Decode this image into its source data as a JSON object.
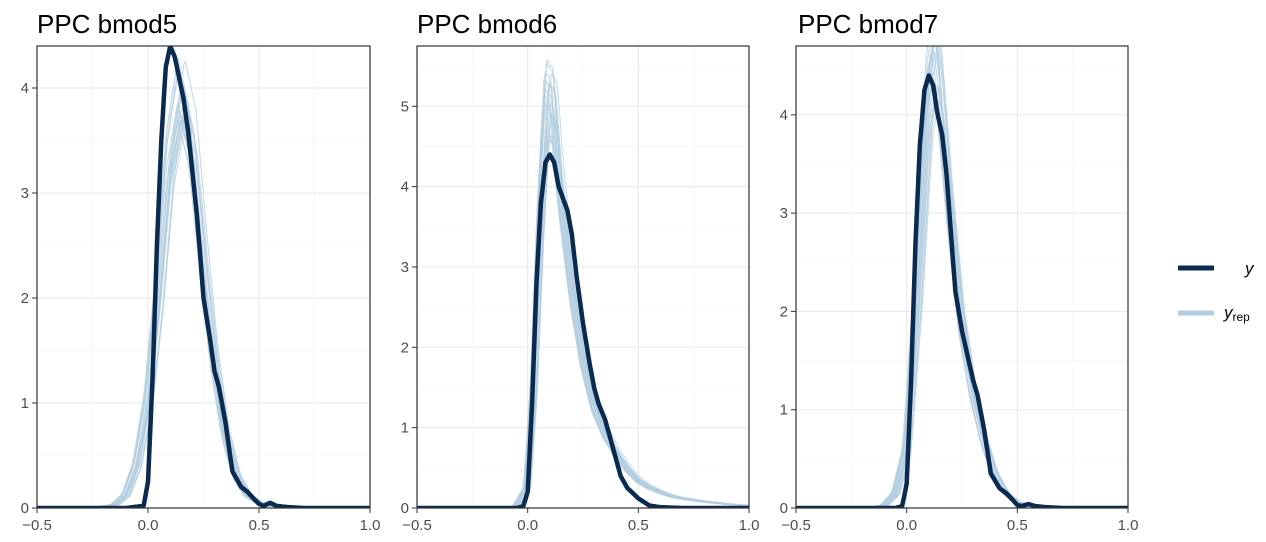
{
  "palette": {
    "y": "#0b2a4f",
    "yrep": "#b3cde0",
    "grid_major": "#ebebeb",
    "grid_minor": "#f5f5f5",
    "frame": "#333333",
    "tick_text": "#4d4d4d"
  },
  "legend": {
    "y_label": "y",
    "yrep_label": "y",
    "yrep_sub": "rep"
  },
  "chart_data": [
    {
      "type": "area",
      "title": "PPC bmod5",
      "xlabel": "",
      "ylabel": "",
      "xlim": [
        -0.5,
        1.0
      ],
      "ylim": [
        0,
        4.4
      ],
      "xticks": [
        -0.5,
        0.0,
        0.5,
        1.0
      ],
      "xtick_labels": [
        "−0.5",
        "0.0",
        "0.5",
        "1.0"
      ],
      "yticks": [
        0,
        1,
        2,
        3,
        4
      ],
      "grid": true,
      "series": [
        {
          "name": "y",
          "x": [
            -0.5,
            -0.1,
            -0.02,
            0.0,
            0.02,
            0.04,
            0.06,
            0.08,
            0.1,
            0.12,
            0.14,
            0.16,
            0.18,
            0.2,
            0.22,
            0.25,
            0.28,
            0.3,
            0.32,
            0.35,
            0.38,
            0.42,
            0.45,
            0.48,
            0.5,
            0.52,
            0.55,
            0.58,
            0.62,
            0.7,
            1.0
          ],
          "y": [
            0,
            0,
            0.02,
            0.25,
            1.2,
            2.5,
            3.5,
            4.2,
            4.4,
            4.3,
            4.1,
            3.9,
            3.6,
            3.2,
            2.8,
            2.0,
            1.6,
            1.3,
            1.15,
            0.8,
            0.35,
            0.2,
            0.15,
            0.08,
            0.04,
            0.02,
            0.05,
            0.02,
            0.01,
            0,
            0
          ]
        }
      ],
      "yrep_draws": 20,
      "yrep_base": {
        "x": [
          -0.5,
          -0.25,
          -0.15,
          -0.1,
          -0.05,
          0.0,
          0.05,
          0.1,
          0.15,
          0.2,
          0.25,
          0.3,
          0.35,
          0.4,
          0.45,
          0.5,
          0.55,
          0.6,
          0.7,
          1.0
        ],
        "y": [
          0,
          0,
          0.03,
          0.12,
          0.4,
          1.0,
          2.0,
          3.3,
          3.95,
          3.5,
          2.4,
          1.4,
          0.7,
          0.3,
          0.12,
          0.05,
          0.02,
          0.01,
          0,
          0
        ]
      }
    },
    {
      "type": "area",
      "title": "PPC bmod6",
      "xlabel": "",
      "ylabel": "",
      "xlim": [
        -0.5,
        1.0
      ],
      "ylim": [
        0,
        5.75
      ],
      "xticks": [
        -0.5,
        0.0,
        0.5,
        1.0
      ],
      "xtick_labels": [
        "−0.5",
        "0.0",
        "0.5",
        "1.0"
      ],
      "yticks": [
        0,
        1,
        2,
        3,
        4,
        5
      ],
      "grid": true,
      "series": [
        {
          "name": "y",
          "x": [
            -0.5,
            -0.05,
            -0.02,
            0.0,
            0.02,
            0.04,
            0.06,
            0.08,
            0.1,
            0.12,
            0.14,
            0.16,
            0.18,
            0.2,
            0.22,
            0.25,
            0.28,
            0.3,
            0.32,
            0.35,
            0.38,
            0.42,
            0.45,
            0.5,
            0.55,
            0.6,
            0.7,
            1.0
          ],
          "y": [
            0,
            0,
            0.02,
            0.2,
            1.3,
            2.8,
            3.8,
            4.3,
            4.4,
            4.3,
            4.0,
            3.85,
            3.7,
            3.4,
            2.9,
            2.3,
            1.8,
            1.5,
            1.3,
            1.1,
            0.8,
            0.4,
            0.25,
            0.12,
            0.03,
            0.01,
            0,
            0
          ]
        }
      ],
      "yrep_draws": 20,
      "yrep_base": {
        "x": [
          -0.5,
          -0.1,
          -0.05,
          0.0,
          0.03,
          0.06,
          0.09,
          0.12,
          0.15,
          0.2,
          0.25,
          0.3,
          0.35,
          0.4,
          0.45,
          0.5,
          0.55,
          0.6,
          0.65,
          0.7,
          0.8,
          0.9,
          1.0
        ],
        "y": [
          0,
          0,
          0.02,
          0.25,
          1.5,
          3.6,
          5.1,
          5.0,
          4.0,
          2.8,
          1.9,
          1.3,
          0.95,
          0.7,
          0.5,
          0.35,
          0.26,
          0.2,
          0.15,
          0.12,
          0.08,
          0.05,
          0.03
        ]
      }
    },
    {
      "type": "area",
      "title": "PPC bmod7",
      "xlabel": "",
      "ylabel": "",
      "xlim": [
        -0.5,
        1.0
      ],
      "ylim": [
        0,
        4.7
      ],
      "xticks": [
        -0.5,
        0.0,
        0.5,
        1.0
      ],
      "xtick_labels": [
        "−0.5",
        "0.0",
        "0.5",
        "1.0"
      ],
      "yticks": [
        0,
        1,
        2,
        3,
        4
      ],
      "grid": true,
      "series": [
        {
          "name": "y",
          "x": [
            -0.5,
            -0.05,
            -0.02,
            0.0,
            0.02,
            0.04,
            0.06,
            0.08,
            0.1,
            0.12,
            0.14,
            0.16,
            0.18,
            0.2,
            0.22,
            0.25,
            0.28,
            0.3,
            0.32,
            0.35,
            0.38,
            0.42,
            0.45,
            0.48,
            0.5,
            0.52,
            0.55,
            0.58,
            0.62,
            0.7,
            1.0
          ],
          "y": [
            0,
            0,
            0.02,
            0.25,
            1.3,
            2.7,
            3.7,
            4.25,
            4.4,
            4.3,
            4.0,
            3.8,
            3.4,
            2.8,
            2.2,
            1.8,
            1.5,
            1.3,
            1.15,
            0.8,
            0.35,
            0.2,
            0.15,
            0.08,
            0.03,
            0.02,
            0.04,
            0.02,
            0.01,
            0,
            0
          ]
        }
      ],
      "yrep_draws": 20,
      "yrep_base": {
        "x": [
          -0.5,
          -0.15,
          -0.1,
          -0.05,
          0.0,
          0.05,
          0.1,
          0.13,
          0.15,
          0.2,
          0.25,
          0.3,
          0.35,
          0.4,
          0.45,
          0.5,
          0.55,
          0.6,
          0.7,
          1.0
        ],
        "y": [
          0,
          0,
          0.03,
          0.15,
          0.6,
          2.2,
          4.2,
          4.6,
          4.3,
          3.0,
          1.9,
          1.2,
          0.7,
          0.35,
          0.15,
          0.06,
          0.03,
          0.01,
          0,
          0
        ]
      }
    }
  ]
}
